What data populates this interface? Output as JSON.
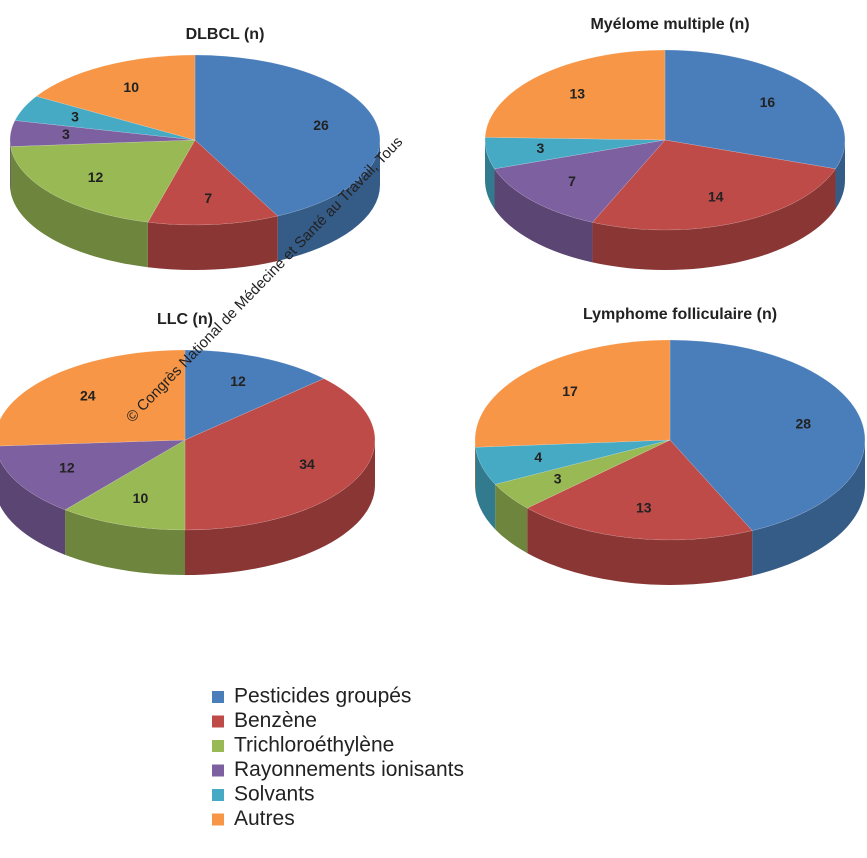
{
  "legend": {
    "categories": [
      "Pesticides groupés",
      "Benzène",
      "Trichloroéthylène",
      "Rayonnements ionisants",
      "Solvants",
      "Autres"
    ],
    "colors": [
      "#4a7ebb",
      "#be4b48",
      "#98b954",
      "#7d60a0",
      "#46aac5",
      "#f79646"
    ]
  },
  "watermark": "© Congrès National de Médecine et Santé au Travail, Tous",
  "chart_data": [
    {
      "type": "pie",
      "title": "DLBCL (n)",
      "values": [
        26,
        7,
        12,
        3,
        3,
        10
      ]
    },
    {
      "type": "pie",
      "title": "Myélome multiple (n)",
      "values": [
        16,
        14,
        null,
        7,
        3,
        13
      ]
    },
    {
      "type": "pie",
      "title": "LLC (n)",
      "values": [
        12,
        34,
        10,
        12,
        null,
        24
      ]
    },
    {
      "type": "pie",
      "title": "Lymphome folliculaire (n)",
      "values": [
        28,
        13,
        3,
        null,
        4,
        17
      ]
    }
  ]
}
